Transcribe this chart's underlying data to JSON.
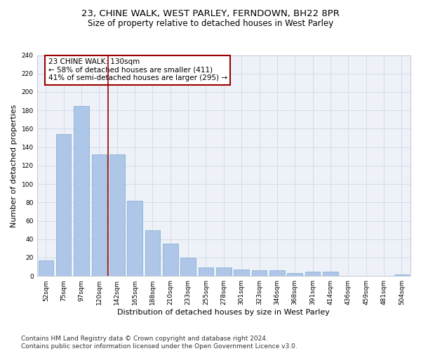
{
  "title": "23, CHINE WALK, WEST PARLEY, FERNDOWN, BH22 8PR",
  "subtitle": "Size of property relative to detached houses in West Parley",
  "xlabel": "Distribution of detached houses by size in West Parley",
  "ylabel": "Number of detached properties",
  "bar_color": "#aec6e8",
  "bar_edge_color": "#7aaad0",
  "categories": [
    "52sqm",
    "75sqm",
    "97sqm",
    "120sqm",
    "142sqm",
    "165sqm",
    "188sqm",
    "210sqm",
    "233sqm",
    "255sqm",
    "278sqm",
    "301sqm",
    "323sqm",
    "346sqm",
    "368sqm",
    "391sqm",
    "414sqm",
    "436sqm",
    "459sqm",
    "481sqm",
    "504sqm"
  ],
  "values": [
    17,
    154,
    185,
    132,
    132,
    82,
    50,
    35,
    20,
    9,
    9,
    7,
    6,
    6,
    3,
    5,
    5,
    0,
    0,
    0,
    2
  ],
  "vline_x": 3.5,
  "vline_color": "#9b0000",
  "annotation_text": "23 CHINE WALK: 130sqm\n← 58% of detached houses are smaller (411)\n41% of semi-detached houses are larger (295) →",
  "annotation_box_color": "#9b0000",
  "ylim": [
    0,
    240
  ],
  "yticks": [
    0,
    20,
    40,
    60,
    80,
    100,
    120,
    140,
    160,
    180,
    200,
    220,
    240
  ],
  "grid_color": "#d0d8e8",
  "background_color": "#eef2f8",
  "footer": "Contains HM Land Registry data © Crown copyright and database right 2024.\nContains public sector information licensed under the Open Government Licence v3.0.",
  "title_fontsize": 9.5,
  "subtitle_fontsize": 8.5,
  "xlabel_fontsize": 8,
  "ylabel_fontsize": 8,
  "tick_fontsize": 6.5,
  "annotation_fontsize": 7.5,
  "footer_fontsize": 6.5
}
